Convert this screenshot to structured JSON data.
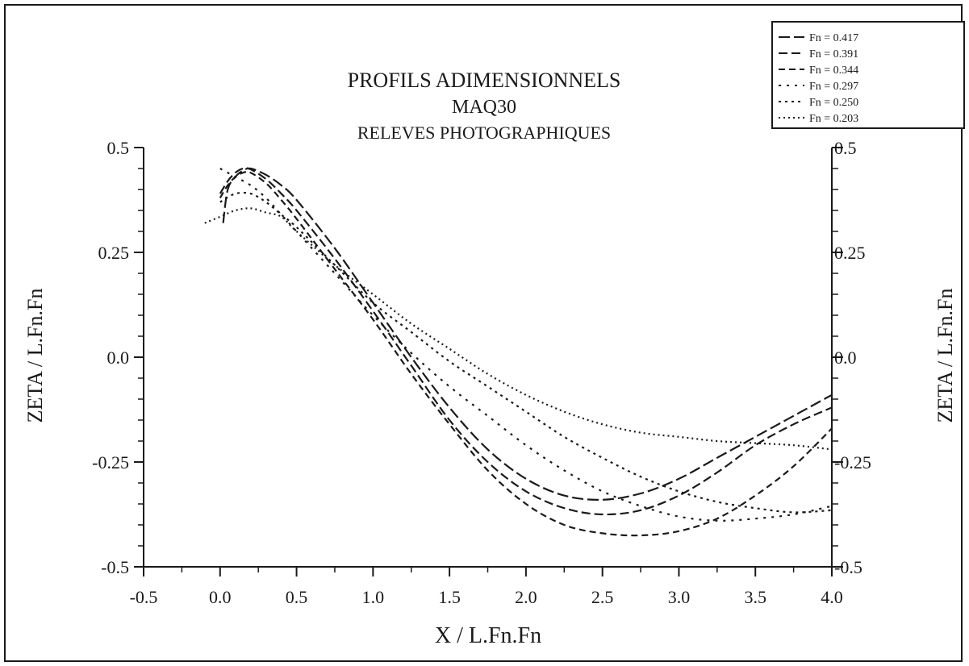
{
  "chart_data": {
    "type": "line",
    "title": "PROFILS ADIMENSIONNELS",
    "subtitle": "MAQ30",
    "subtitle2": "RELEVES PHOTOGRAPHIQUES",
    "xlabel": "X / L.Fn.Fn",
    "ylabel": "ZETA / L.Fn.Fn",
    "ylabel_right": "ZETA / L.Fn.Fn",
    "xlim": [
      -0.5,
      4.0
    ],
    "ylim": [
      -0.5,
      0.5
    ],
    "xticks": [
      "-0.5",
      "0.0",
      "0.5",
      "1.0",
      "1.5",
      "2.0",
      "2.5",
      "3.0",
      "3.5",
      "4.0"
    ],
    "xtick_values": [
      -0.5,
      0.0,
      0.5,
      1.0,
      1.5,
      2.0,
      2.5,
      3.0,
      3.5,
      4.0
    ],
    "yticks": [
      "0.5",
      "0.25",
      "0.0",
      "-0.25",
      "-0.5"
    ],
    "ytick_values": [
      0.5,
      0.25,
      0.0,
      -0.25,
      -0.5
    ],
    "legend_position": "top-right",
    "grid": false,
    "series": [
      {
        "name": "Fn = 0.417",
        "dash": "14 5",
        "x": [
          0.02,
          0.05,
          0.1,
          0.15,
          0.2,
          0.3,
          0.4,
          0.5,
          0.75,
          1.0,
          1.25,
          1.5,
          1.75,
          2.0,
          2.25,
          2.5,
          2.75,
          3.0,
          3.25,
          3.5,
          3.75,
          4.0
        ],
        "y": [
          0.32,
          0.4,
          0.43,
          0.445,
          0.45,
          0.435,
          0.41,
          0.375,
          0.26,
          0.13,
          0.0,
          -0.12,
          -0.22,
          -0.29,
          -0.33,
          -0.34,
          -0.325,
          -0.29,
          -0.24,
          -0.19,
          -0.14,
          -0.09
        ]
      },
      {
        "name": "Fn = 0.391",
        "dash": "11 5",
        "x": [
          0.0,
          0.05,
          0.1,
          0.15,
          0.2,
          0.3,
          0.4,
          0.5,
          0.75,
          1.0,
          1.25,
          1.5,
          1.75,
          2.0,
          2.25,
          2.5,
          2.75,
          3.0,
          3.25,
          3.5,
          3.75,
          4.0
        ],
        "y": [
          0.39,
          0.42,
          0.44,
          0.45,
          0.448,
          0.425,
          0.39,
          0.35,
          0.235,
          0.11,
          -0.02,
          -0.15,
          -0.25,
          -0.32,
          -0.36,
          -0.375,
          -0.365,
          -0.33,
          -0.275,
          -0.21,
          -0.16,
          -0.12
        ]
      },
      {
        "name": "Fn = 0.344",
        "dash": "8 5",
        "x": [
          0.0,
          0.05,
          0.1,
          0.15,
          0.2,
          0.3,
          0.4,
          0.5,
          0.75,
          1.0,
          1.25,
          1.5,
          1.75,
          2.0,
          2.25,
          2.5,
          2.75,
          3.0,
          3.25,
          3.5,
          3.75,
          4.0
        ],
        "y": [
          0.38,
          0.41,
          0.43,
          0.44,
          0.44,
          0.415,
          0.375,
          0.33,
          0.21,
          0.09,
          -0.04,
          -0.16,
          -0.27,
          -0.35,
          -0.4,
          -0.42,
          -0.425,
          -0.415,
          -0.385,
          -0.33,
          -0.26,
          -0.17
        ]
      },
      {
        "name": "Fn = 0.297",
        "dash": "3 7",
        "x": [
          0.0,
          0.1,
          0.2,
          0.3,
          0.4,
          0.5,
          0.75,
          1.0,
          1.25,
          1.5,
          1.75,
          2.0,
          2.25,
          2.5,
          2.75,
          3.0,
          3.25,
          3.5,
          3.75,
          4.0
        ],
        "y": [
          0.45,
          0.43,
          0.41,
          0.38,
          0.34,
          0.3,
          0.2,
          0.1,
          0.01,
          -0.07,
          -0.14,
          -0.21,
          -0.27,
          -0.32,
          -0.355,
          -0.38,
          -0.39,
          -0.385,
          -0.375,
          -0.355
        ]
      },
      {
        "name": "Fn = 0.250",
        "dash": "3 5",
        "x": [
          0.0,
          0.1,
          0.2,
          0.3,
          0.4,
          0.5,
          0.75,
          1.0,
          1.25,
          1.5,
          1.75,
          2.0,
          2.25,
          2.5,
          2.75,
          3.0,
          3.25,
          3.5,
          3.75,
          4.0
        ],
        "y": [
          0.37,
          0.39,
          0.39,
          0.37,
          0.34,
          0.31,
          0.22,
          0.13,
          0.06,
          -0.01,
          -0.07,
          -0.13,
          -0.19,
          -0.24,
          -0.285,
          -0.32,
          -0.345,
          -0.36,
          -0.37,
          -0.365
        ]
      },
      {
        "name": "Fn = 0.203",
        "dash": "2 4",
        "x": [
          -0.1,
          0.0,
          0.1,
          0.2,
          0.3,
          0.4,
          0.5,
          0.75,
          1.0,
          1.25,
          1.5,
          1.75,
          2.0,
          2.25,
          2.5,
          2.75,
          3.0,
          3.25,
          3.5,
          3.75,
          4.0
        ],
        "y": [
          0.32,
          0.335,
          0.35,
          0.355,
          0.345,
          0.335,
          0.3,
          0.22,
          0.15,
          0.08,
          0.02,
          -0.04,
          -0.09,
          -0.13,
          -0.16,
          -0.18,
          -0.19,
          -0.2,
          -0.205,
          -0.21,
          -0.22
        ]
      }
    ]
  }
}
